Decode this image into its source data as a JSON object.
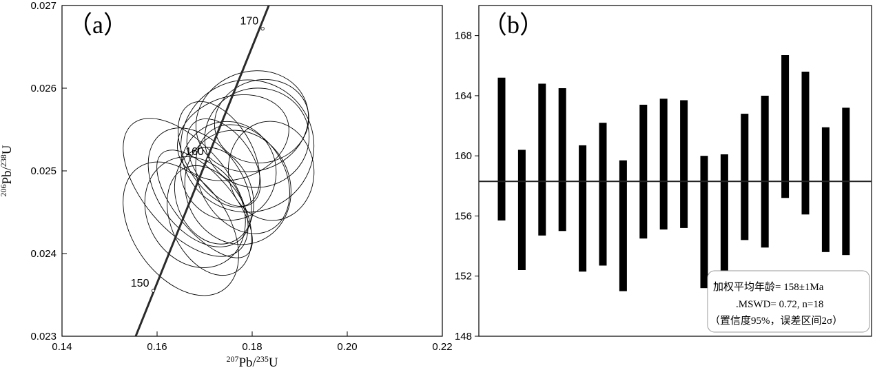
{
  "chart_data": [
    {
      "type": "scatter",
      "subtype": "concordia",
      "panel_label": "（a）",
      "xlabel": {
        "m207": "207",
        "pb": "Pb/",
        "m235": "235",
        "u": "U"
      },
      "ylabel": {
        "m206": "206",
        "pb": "Pb/",
        "m238": "238",
        "u": "U"
      },
      "xlim": [
        0.14,
        0.22
      ],
      "ylim": [
        0.023,
        0.027
      ],
      "x_ticks": [
        "0.14",
        "0.16",
        "0.18",
        "0.20",
        "0.22"
      ],
      "y_ticks": [
        "0.023",
        "0.024",
        "0.025",
        "0.026",
        "0.027"
      ],
      "concordia_ages": [
        {
          "label": "150",
          "x": 0.1592,
          "y": 0.02355
        },
        {
          "label": "160",
          "x": 0.1707,
          "y": 0.02514
        },
        {
          "label": "170",
          "x": 0.1822,
          "y": 0.02672
        }
      ],
      "concordia_line": {
        "x0": 0.1555,
        "y0": 0.023,
        "x1": 0.1835,
        "y1": 0.027
      },
      "error_ellipses": [
        {
          "cx": 0.175,
          "cy": 0.025,
          "rx": 0.01,
          "ry": 0.0006,
          "angle": -20
        },
        {
          "cx": 0.179,
          "cy": 0.0253,
          "rx": 0.014,
          "ry": 0.0008,
          "angle": -15
        },
        {
          "cx": 0.165,
          "cy": 0.0243,
          "rx": 0.01,
          "ry": 0.0009,
          "angle": -35
        },
        {
          "cx": 0.178,
          "cy": 0.0249,
          "rx": 0.009,
          "ry": 0.0007,
          "angle": -30
        },
        {
          "cx": 0.172,
          "cy": 0.0247,
          "rx": 0.008,
          "ry": 0.0006,
          "angle": -20
        },
        {
          "cx": 0.17,
          "cy": 0.0246,
          "rx": 0.006,
          "ry": 0.0008,
          "angle": -40
        },
        {
          "cx": 0.181,
          "cy": 0.0254,
          "rx": 0.011,
          "ry": 0.0006,
          "angle": -10
        },
        {
          "cx": 0.168,
          "cy": 0.0245,
          "rx": 0.01,
          "ry": 0.0007,
          "angle": -30
        },
        {
          "cx": 0.184,
          "cy": 0.025,
          "rx": 0.009,
          "ry": 0.0006,
          "angle": -5
        },
        {
          "cx": 0.173,
          "cy": 0.0252,
          "rx": 0.007,
          "ry": 0.0007,
          "angle": -30
        },
        {
          "cx": 0.176,
          "cy": 0.0254,
          "rx": 0.012,
          "ry": 0.0005,
          "angle": -18
        },
        {
          "cx": 0.169,
          "cy": 0.0248,
          "rx": 0.009,
          "ry": 0.0008,
          "angle": -35
        },
        {
          "cx": 0.18,
          "cy": 0.0256,
          "rx": 0.012,
          "ry": 0.0006,
          "angle": -20
        },
        {
          "cx": 0.171,
          "cy": 0.0244,
          "rx": 0.008,
          "ry": 0.0007,
          "angle": -25
        },
        {
          "cx": 0.177,
          "cy": 0.0248,
          "rx": 0.011,
          "ry": 0.0007,
          "angle": -22
        },
        {
          "cx": 0.166,
          "cy": 0.0248,
          "rx": 0.009,
          "ry": 0.001,
          "angle": -40
        },
        {
          "cx": 0.182,
          "cy": 0.0256,
          "rx": 0.01,
          "ry": 0.0005,
          "angle": -15
        },
        {
          "cx": 0.174,
          "cy": 0.0251,
          "rx": 0.006,
          "ry": 0.0006,
          "angle": -35
        }
      ],
      "grid": false
    },
    {
      "type": "bar",
      "subtype": "weighted-mean",
      "panel_label": "（b）",
      "ylim": [
        148,
        170
      ],
      "y_ticks": [
        "148",
        "152",
        "156",
        "160",
        "164",
        "168"
      ],
      "bars": [
        {
          "low": 155.7,
          "high": 165.2
        },
        {
          "low": 152.4,
          "high": 160.4
        },
        {
          "low": 154.7,
          "high": 164.8
        },
        {
          "low": 155.0,
          "high": 164.5
        },
        {
          "low": 152.3,
          "high": 160.7
        },
        {
          "low": 152.7,
          "high": 162.2
        },
        {
          "low": 151.0,
          "high": 159.7
        },
        {
          "low": 154.5,
          "high": 163.4
        },
        {
          "low": 155.1,
          "high": 163.8
        },
        {
          "low": 155.2,
          "high": 163.7
        },
        {
          "low": 151.2,
          "high": 160.0
        },
        {
          "low": 151.6,
          "high": 160.1
        },
        {
          "low": 154.4,
          "high": 162.8
        },
        {
          "low": 153.9,
          "high": 164.0
        },
        {
          "low": 157.2,
          "high": 166.7
        },
        {
          "low": 156.1,
          "high": 165.6
        },
        {
          "low": 153.6,
          "high": 161.9
        },
        {
          "low": 153.4,
          "high": 163.2
        }
      ],
      "mean": 158.3,
      "legend": {
        "line1": "加权平均年龄= 158±1Ma",
        "line2": ".MSWD= 0.72, n=18",
        "line3": "（置信度95%，误差区间2σ）"
      },
      "grid": false
    }
  ]
}
